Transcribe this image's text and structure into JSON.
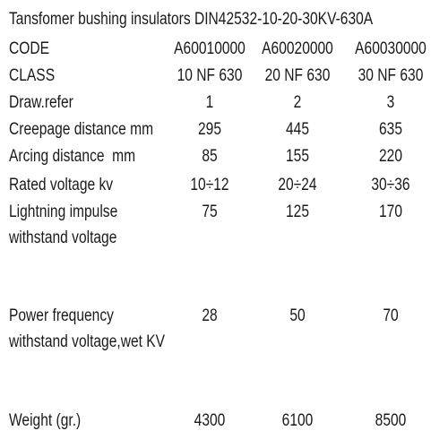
{
  "title": "Tansfomer bushing insulators DIN42532-10-20-30KV-630A",
  "table": {
    "rows": [
      {
        "label": [
          "CODE"
        ],
        "values": [
          "A60010000",
          "A60020000",
          "A60030000"
        ]
      },
      {
        "label": [
          "CLASS"
        ],
        "values": [
          "10 NF 630",
          "20 NF 630",
          "30 NF 630"
        ]
      },
      {
        "label": [
          "Draw.refer"
        ],
        "values": [
          "1",
          "2",
          "3"
        ]
      },
      {
        "label": [
          "Creepage distance mm"
        ],
        "values": [
          "295",
          "445",
          "635"
        ]
      },
      {
        "label": [
          "Arcing distance  mm"
        ],
        "values": [
          "85",
          "155",
          "220"
        ]
      },
      {
        "label": [
          "Rated voltage kv"
        ],
        "values": [
          "10÷12",
          "20÷24",
          "30÷36"
        ]
      },
      {
        "label": [
          "Lightning impulse",
          "withstand voltage"
        ],
        "values": [
          "75",
          "125",
          "170"
        ]
      },
      {
        "label": [
          "Power frequency",
          "withstand voltage,wet KV"
        ],
        "values": [
          "28",
          "50",
          "70"
        ]
      },
      {
        "label": [
          "Weight (gr.)"
        ],
        "values": [
          "4300",
          "6100",
          "8500"
        ]
      }
    ]
  }
}
